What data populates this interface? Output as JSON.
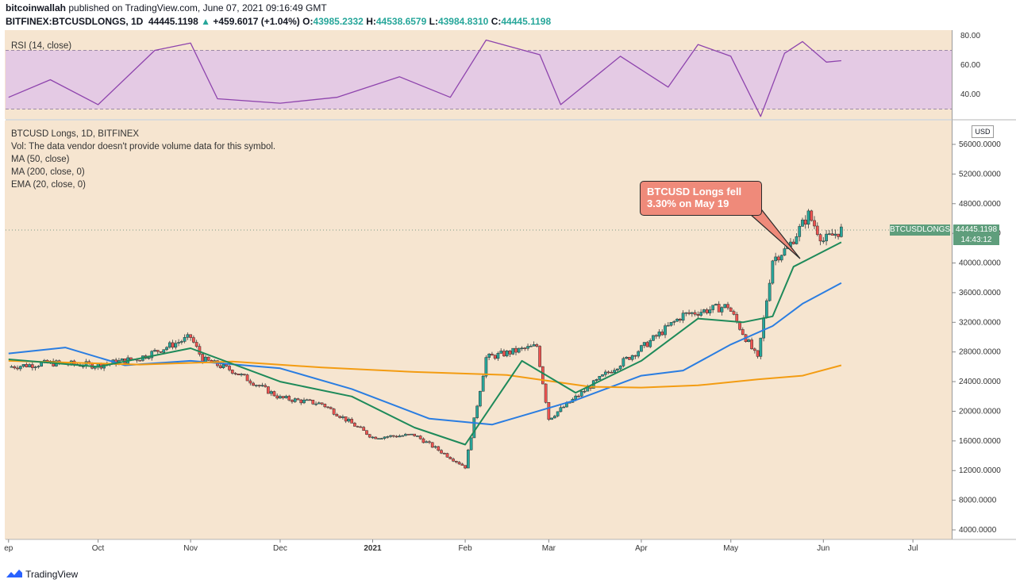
{
  "header": {
    "publisher": "bitcoinwallah",
    "published_text": "published on TradingView.com, June 07, 2021 09:16:49 GMT",
    "symbol": "BITFINEX:BTCUSDLONGS, 1D",
    "last": "44445.1198",
    "change_arrow": "▲",
    "change": "+459.6017 (+1.04%)",
    "open_label": "O:",
    "open": "43985.2332",
    "high_label": "H:",
    "high": "44538.6579",
    "low_label": "L:",
    "low": "43984.8310",
    "close_label": "C:",
    "close": "44445.1198"
  },
  "rsi_panel": {
    "label": "RSI (14, close)",
    "ticks": [
      "80.00",
      "60.00",
      "40.00"
    ]
  },
  "main_panel": {
    "title": "BTCUSD Longs, 1D, BITFINEX",
    "volume_note": "Vol: The data vendor doesn't provide volume data for this symbol.",
    "ma50_label": "MA (50, close)",
    "ma200_label": "MA (200, close, 0)",
    "ema20_label": "EMA (20, close, 0)",
    "currency": "USD",
    "price_tag_name": "BTCUSDLONGS",
    "price_tag_value": "44445.1198",
    "price_tag_time": "14:43:12",
    "y_ticks": [
      "56000.0000",
      "52000.0000",
      "48000.0000",
      "44000.0000",
      "40000.0000",
      "36000.0000",
      "32000.0000",
      "28000.0000",
      "24000.0000",
      "20000.0000",
      "16000.0000",
      "12000.0000",
      "8000.0000",
      "4000.0000"
    ],
    "x_ticks": [
      "ep",
      "Oct",
      "Nov",
      "Dec",
      "2021",
      "Feb",
      "Mar",
      "Apr",
      "May",
      "Jun",
      "Jul"
    ]
  },
  "annotation": {
    "line1": "BTCUSD Longs fell",
    "line2": "3.30% on May 19"
  },
  "footer": {
    "brand": "TradingView"
  },
  "colors": {
    "up": "#26a69a",
    "down": "#ef5350",
    "ma50": "#2a7de1",
    "ma200": "#f39c12",
    "ema20": "#1e8a5a",
    "rsi": "#8e44ad",
    "rsi_band": "#e1c6e8",
    "background": "#f6e5d0"
  },
  "chart_data": {
    "type": "line",
    "title": "",
    "ylabel": "USD",
    "ylim": [
      2000,
      60000
    ],
    "rsi_ylim": [
      20,
      90
    ],
    "rsi_band": [
      30,
      70
    ],
    "price": {
      "x": [
        "2020-09-01",
        "2020-09-15",
        "2020-10-01",
        "2020-10-15",
        "2020-11-01",
        "2020-11-05",
        "2020-11-15",
        "2020-12-01",
        "2020-12-15",
        "2021-01-01",
        "2021-01-15",
        "2021-02-01",
        "2021-02-08",
        "2021-02-25",
        "2021-03-01",
        "2021-03-20",
        "2021-04-01",
        "2021-04-15",
        "2021-04-30",
        "2021-05-10",
        "2021-05-15",
        "2021-05-20",
        "2021-05-27",
        "2021-06-01",
        "2021-06-07"
      ],
      "values": [
        26000,
        26500,
        26200,
        27200,
        30000,
        27000,
        25500,
        21800,
        21000,
        16500,
        16800,
        12500,
        27200,
        28800,
        19000,
        25000,
        28500,
        33000,
        34200,
        27000,
        40500,
        42000,
        46500,
        43000,
        44445
      ]
    },
    "series": [
      {
        "name": "MA (50, close)",
        "x": [
          "2020-09-01",
          "2020-09-20",
          "2020-10-10",
          "2020-11-01",
          "2020-12-01",
          "2020-12-25",
          "2021-01-20",
          "2021-02-10",
          "2021-03-10",
          "2021-04-01",
          "2021-04-15",
          "2021-05-01",
          "2021-05-15",
          "2021-05-25",
          "2021-06-07"
        ],
        "values": [
          27800,
          28600,
          26200,
          26800,
          25800,
          23000,
          19000,
          18200,
          21500,
          24800,
          25500,
          29000,
          31500,
          34500,
          37300
        ]
      },
      {
        "name": "MA (200, close, 0)",
        "x": [
          "2020-09-01",
          "2020-10-15",
          "2020-11-15",
          "2020-12-15",
          "2021-01-15",
          "2021-02-15",
          "2021-03-15",
          "2021-04-01",
          "2021-04-20",
          "2021-05-10",
          "2021-05-25",
          "2021-06-07"
        ],
        "values": [
          26800,
          26300,
          26700,
          25900,
          25300,
          24900,
          23300,
          23200,
          23500,
          24300,
          24800,
          26200
        ]
      },
      {
        "name": "EMA (20, close, 0)",
        "x": [
          "2020-09-01",
          "2020-10-01",
          "2020-11-01",
          "2020-12-01",
          "2020-12-25",
          "2021-01-15",
          "2021-02-01",
          "2021-02-20",
          "2021-03-10",
          "2021-04-01",
          "2021-04-20",
          "2021-05-05",
          "2021-05-15",
          "2021-05-22",
          "2021-06-07"
        ],
        "values": [
          27000,
          26000,
          28500,
          24000,
          22000,
          17800,
          15500,
          26800,
          22500,
          26800,
          32500,
          32000,
          32800,
          39500,
          42800
        ]
      },
      {
        "name": "RSI (14, close)",
        "x": [
          "2020-09-01",
          "2020-09-15",
          "2020-10-01",
          "2020-10-20",
          "2020-11-01",
          "2020-11-10",
          "2020-12-01",
          "2020-12-20",
          "2021-01-10",
          "2021-01-27",
          "2021-02-08",
          "2021-02-26",
          "2021-03-05",
          "2021-03-25",
          "2021-04-10",
          "2021-04-20",
          "2021-05-01",
          "2021-05-11",
          "2021-05-19",
          "2021-05-25",
          "2021-06-02",
          "2021-06-07"
        ],
        "values": [
          38,
          50,
          33,
          70,
          75,
          37,
          34,
          38,
          52,
          38,
          77,
          67,
          33,
          66,
          45,
          74,
          66,
          25,
          68,
          76,
          62,
          63
        ]
      }
    ]
  }
}
